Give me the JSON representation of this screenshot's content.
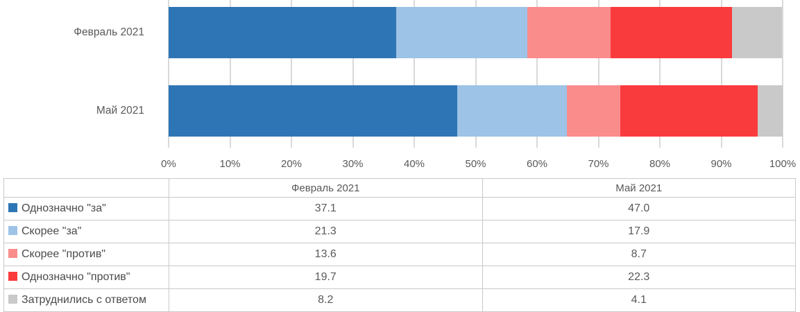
{
  "chart_data": {
    "type": "bar",
    "stacked": true,
    "orientation": "horizontal",
    "title": "",
    "categories": [
      "Февраль 2021",
      "Май 2021"
    ],
    "series": [
      {
        "name": "Однозначно \"за\"",
        "color": "#2E75B6",
        "values": [
          37.1,
          47.0
        ]
      },
      {
        "name": "Скорее \"за\"",
        "color": "#9DC3E6",
        "values": [
          21.3,
          17.9
        ]
      },
      {
        "name": "Скорее \"против\"",
        "color": "#FA8C8C",
        "values": [
          13.6,
          8.7
        ]
      },
      {
        "name": "Однозначно \"против\"",
        "color": "#FA3B3D",
        "values": [
          19.7,
          22.3
        ]
      },
      {
        "name": "Затруднились с ответом",
        "color": "#C9C9C9",
        "values": [
          8.2,
          4.1
        ]
      }
    ],
    "x_axis": {
      "min": 0,
      "max": 100,
      "tick_step": 10,
      "tick_labels": [
        "0%",
        "10%",
        "20%",
        "30%",
        "40%",
        "50%",
        "60%",
        "70%",
        "80%",
        "90%",
        "100%"
      ]
    },
    "grid": true,
    "gridline_color": "#D9D9D9",
    "legend_position": "table-below"
  },
  "table": {
    "header": [
      "",
      "Февраль 2021",
      "Май 2021"
    ],
    "rows": [
      {
        "label": "Однозначно \"за\"",
        "swatch_color": "#2E75B6",
        "values": [
          "37.1",
          "47.0"
        ]
      },
      {
        "label": "Скорее \"за\"",
        "swatch_color": "#9DC3E6",
        "values": [
          "21.3",
          "17.9"
        ]
      },
      {
        "label": "Скорее \"против\"",
        "swatch_color": "#FA8C8C",
        "values": [
          "13.6",
          "8.7"
        ]
      },
      {
        "label": "Однозначно \"против\"",
        "swatch_color": "#FA3B3D",
        "values": [
          "19.7",
          "22.3"
        ]
      },
      {
        "label": "Затруднились с ответом",
        "swatch_color": "#C9C9C9",
        "values": [
          "8.2",
          "4.1"
        ]
      }
    ],
    "border_color": "#C9C9C9"
  },
  "colors": {
    "text": "#595959",
    "gridline": "#D9D9D9",
    "background": "#FFFFFF"
  }
}
